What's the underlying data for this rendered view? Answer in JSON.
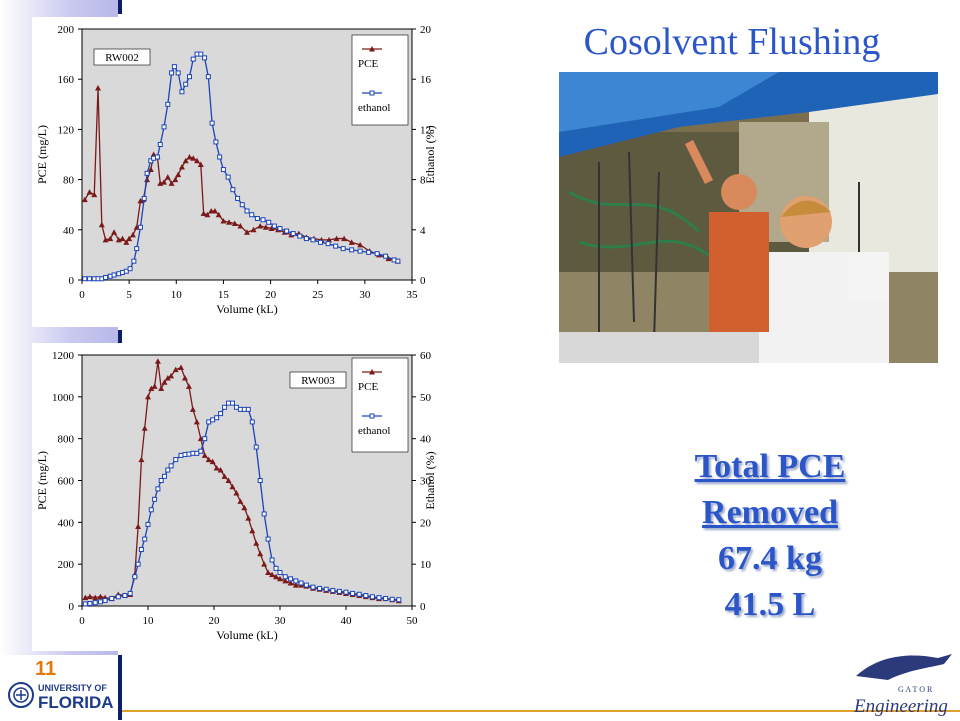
{
  "slide": {
    "title": "Cosolvent Flushing",
    "total_line1": "Total PCE",
    "total_line2": "Removed",
    "mass": "67.4 kg",
    "volume": "41.5 L",
    "slide_number": "11",
    "uf_line1": "UNIVERSITY OF",
    "uf_line2": "FLORIDA",
    "eng_letters": "G A T O R",
    "eng_word": "Engineering"
  },
  "chart_data": [
    {
      "type": "line",
      "label": "RW002",
      "xlabel": "Volume (kL)",
      "ylabel": "PCE (mg/L)",
      "y2label": "Ethanol (%)",
      "xlim": [
        0,
        35
      ],
      "ylim": [
        0,
        200
      ],
      "y2lim": [
        0,
        20
      ],
      "xticks": [
        0,
        5,
        10,
        15,
        20,
        25,
        30,
        35
      ],
      "yticks": [
        0,
        40,
        80,
        120,
        160,
        200
      ],
      "y2ticks": [
        0,
        4,
        8,
        12,
        16,
        20
      ],
      "grid": false,
      "legend": "top-right",
      "series": [
        {
          "name": "PCE",
          "axis": "left",
          "color": "#7a1a1a",
          "marker": "triangle",
          "x": [
            0.3,
            0.8,
            1.3,
            1.7,
            2.1,
            2.5,
            3.0,
            3.4,
            3.9,
            4.3,
            4.7,
            5.0,
            5.4,
            5.8,
            6.2,
            6.5,
            6.9,
            7.3,
            7.6,
            8.0,
            8.3,
            8.7,
            9.1,
            9.5,
            9.9,
            10.2,
            10.6,
            11.0,
            11.4,
            11.8,
            12.2,
            12.6,
            12.9,
            13.3,
            13.7,
            14.1,
            14.5,
            15.0,
            15.6,
            16.2,
            16.8,
            17.5,
            18.2,
            18.9,
            19.5,
            20.1,
            20.8,
            21.5,
            22.2,
            23.0,
            23.8,
            24.6,
            25.4,
            26.2,
            27.0,
            27.8,
            28.6,
            29.5,
            30.5,
            31.5,
            32.5,
            33.5
          ],
          "y": [
            64,
            70,
            68,
            153,
            44,
            32,
            33,
            38,
            32,
            33,
            30,
            33,
            36,
            42,
            63,
            64,
            80,
            88,
            100,
            98,
            77,
            78,
            82,
            77,
            80,
            84,
            90,
            95,
            98,
            97,
            95,
            92,
            53,
            52,
            55,
            55,
            52,
            47,
            46,
            45,
            43,
            38,
            40,
            43,
            42,
            41,
            40,
            38,
            36,
            37,
            34,
            33,
            32,
            32,
            33,
            33,
            30,
            28,
            23,
            20,
            17,
            15
          ]
        },
        {
          "name": "ethanol",
          "axis": "right",
          "color": "#1c44b8",
          "marker": "square",
          "x": [
            0.3,
            0.8,
            1.3,
            1.7,
            2.1,
            2.5,
            3.0,
            3.4,
            3.9,
            4.3,
            4.7,
            5.1,
            5.5,
            5.8,
            6.2,
            6.6,
            6.9,
            7.3,
            7.6,
            8.0,
            8.3,
            8.7,
            9.1,
            9.5,
            9.8,
            10.2,
            10.6,
            11.0,
            11.4,
            11.8,
            12.2,
            12.6,
            13.0,
            13.4,
            13.8,
            14.2,
            14.6,
            15.0,
            15.5,
            16.0,
            16.5,
            17.0,
            17.5,
            18.0,
            18.6,
            19.2,
            19.8,
            20.4,
            21.0,
            21.7,
            22.4,
            23.1,
            23.8,
            24.5,
            25.3,
            26.1,
            26.9,
            27.7,
            28.6,
            29.5,
            30.4,
            31.3,
            32.2,
            33.1,
            33.5
          ],
          "y": [
            0.1,
            0.1,
            0.1,
            0.1,
            0.1,
            0.2,
            0.3,
            0.4,
            0.5,
            0.6,
            0.7,
            0.9,
            1.5,
            2.5,
            4.2,
            6.5,
            8.5,
            9.5,
            9.7,
            9.8,
            10.8,
            12.2,
            14.0,
            16.5,
            17.0,
            16.5,
            15.0,
            15.6,
            16.2,
            17.6,
            18.0,
            18.0,
            17.7,
            16.2,
            12.5,
            11.0,
            9.8,
            8.8,
            8.2,
            7.2,
            6.5,
            6.0,
            5.5,
            5.2,
            4.9,
            4.8,
            4.6,
            4.3,
            4.1,
            3.9,
            3.7,
            3.5,
            3.3,
            3.2,
            3.0,
            2.9,
            2.7,
            2.5,
            2.4,
            2.3,
            2.2,
            2.1,
            1.9,
            1.6,
            1.5
          ]
        }
      ]
    },
    {
      "type": "line",
      "label": "RW003",
      "xlabel": "Volume (kL)",
      "ylabel": "PCE (mg/L)",
      "y2label": "Ethanol (%)",
      "xlim": [
        0,
        50
      ],
      "ylim": [
        0,
        1200
      ],
      "y2lim": [
        0,
        60
      ],
      "xticks": [
        0,
        10,
        20,
        30,
        40,
        50
      ],
      "yticks": [
        0,
        200,
        400,
        600,
        800,
        1000,
        1200
      ],
      "y2ticks": [
        0,
        10,
        20,
        30,
        40,
        50,
        60
      ],
      "grid": false,
      "legend": "top-right",
      "series": [
        {
          "name": "PCE",
          "axis": "left",
          "color": "#7a1a1a",
          "marker": "triangle",
          "x": [
            0.5,
            1.2,
            2.0,
            2.8,
            3.5,
            4.5,
            5.5,
            6.5,
            7.3,
            8.0,
            8.5,
            9.0,
            9.5,
            10.0,
            10.5,
            11.0,
            11.5,
            12.0,
            12.5,
            13.0,
            13.5,
            14.2,
            15.0,
            15.6,
            16.2,
            16.8,
            17.4,
            18.0,
            18.6,
            19.2,
            19.8,
            20.4,
            21.0,
            21.6,
            22.2,
            22.8,
            23.4,
            24.0,
            24.6,
            25.2,
            25.8,
            26.4,
            27.0,
            27.6,
            28.2,
            28.8,
            29.4,
            30.0,
            30.8,
            31.6,
            32.4,
            33.2,
            34.0,
            35.0,
            36.0,
            37.0,
            38.0,
            39.0,
            40.0,
            41.0,
            42.0,
            43.0,
            44.0,
            45.0,
            46.0,
            47.0,
            48.0
          ],
          "y": [
            40,
            45,
            40,
            45,
            40,
            35,
            55,
            50,
            55,
            150,
            380,
            700,
            850,
            1000,
            1040,
            1050,
            1170,
            1040,
            1070,
            1090,
            1100,
            1130,
            1140,
            1090,
            1050,
            940,
            880,
            800,
            720,
            700,
            690,
            660,
            650,
            620,
            600,
            570,
            540,
            500,
            470,
            420,
            360,
            300,
            250,
            200,
            160,
            150,
            140,
            130,
            120,
            110,
            100,
            100,
            95,
            85,
            80,
            75,
            70,
            65,
            60,
            55,
            50,
            45,
            40,
            35,
            35,
            30,
            25
          ]
        },
        {
          "name": "ethanol",
          "axis": "right",
          "color": "#1c44b8",
          "marker": "square",
          "x": [
            0.5,
            1.2,
            2.0,
            2.8,
            3.5,
            4.5,
            5.5,
            6.5,
            7.3,
            8.0,
            8.5,
            9.0,
            9.5,
            10.0,
            10.5,
            11.0,
            11.5,
            12.0,
            12.5,
            13.0,
            13.5,
            14.2,
            15.0,
            15.6,
            16.2,
            16.8,
            17.4,
            18.0,
            18.6,
            19.2,
            19.8,
            20.4,
            21.0,
            21.6,
            22.2,
            22.8,
            23.4,
            24.0,
            24.6,
            25.2,
            25.8,
            26.4,
            27.0,
            27.6,
            28.2,
            28.8,
            29.4,
            30.0,
            30.8,
            31.6,
            32.4,
            33.2,
            34.0,
            35.0,
            36.0,
            37.0,
            38.0,
            39.0,
            40.0,
            41.0,
            42.0,
            43.0,
            44.0,
            45.0,
            46.0,
            47.0,
            48.0
          ],
          "y": [
            0.5,
            0.6,
            0.8,
            1.0,
            1.3,
            1.8,
            2.2,
            2.5,
            3.0,
            7.0,
            10.0,
            13.5,
            16.0,
            19.5,
            23.0,
            25.5,
            28.0,
            30.0,
            31.0,
            32.5,
            33.5,
            35.0,
            36.0,
            36.2,
            36.3,
            36.5,
            36.5,
            37.0,
            40.0,
            44.0,
            44.5,
            45.0,
            46.0,
            47.5,
            48.5,
            48.5,
            47.5,
            47.0,
            47.0,
            47.0,
            44.0,
            38.0,
            30.0,
            22.0,
            16.0,
            11.0,
            9.0,
            8.0,
            7.0,
            6.5,
            6.0,
            5.5,
            5.0,
            4.5,
            4.2,
            4.0,
            3.7,
            3.5,
            3.3,
            3.0,
            2.8,
            2.5,
            2.2,
            2.0,
            1.8,
            1.6,
            1.5
          ]
        }
      ]
    }
  ]
}
